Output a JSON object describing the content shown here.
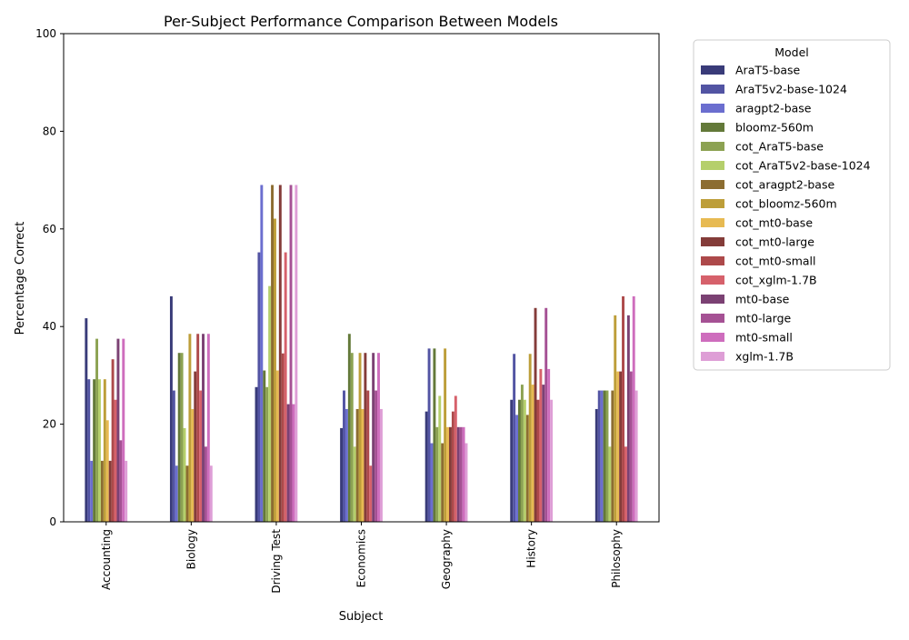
{
  "chart_data": {
    "type": "bar",
    "title": "Per-Subject Performance Comparison Between Models",
    "xlabel": "Subject",
    "ylabel": "Percentage Correct",
    "ylim": [
      0,
      100
    ],
    "yticks": [
      0,
      20,
      40,
      60,
      80,
      100
    ],
    "grid": false,
    "legend": {
      "title": "Model",
      "placement": "outside-right"
    },
    "categories": [
      "Accounting",
      "Biology",
      "Driving Test",
      "Economics",
      "Geography",
      "History",
      "Philosophy"
    ],
    "series": [
      {
        "name": "AraT5-base",
        "color": "#393b79",
        "values": [
          41.7,
          46.2,
          27.6,
          19.2,
          22.6,
          25.0,
          23.1
        ]
      },
      {
        "name": "AraT5v2-base-1024",
        "color": "#5254a3",
        "values": [
          29.2,
          26.9,
          55.2,
          26.9,
          35.5,
          34.4,
          26.9
        ]
      },
      {
        "name": "aragpt2-base",
        "color": "#6b6ecf",
        "values": [
          12.5,
          11.5,
          69.0,
          23.1,
          16.1,
          21.9,
          26.9
        ]
      },
      {
        "name": "bloomz-560m",
        "color": "#637939",
        "values": [
          29.2,
          34.6,
          31.0,
          38.5,
          35.5,
          25.0,
          26.9
        ]
      },
      {
        "name": "cot_AraT5-base",
        "color": "#8ca252",
        "values": [
          37.5,
          34.6,
          27.6,
          34.6,
          19.4,
          28.1,
          26.9
        ]
      },
      {
        "name": "cot_AraT5v2-base-1024",
        "color": "#b5cf6b",
        "values": [
          29.2,
          19.2,
          48.3,
          15.4,
          25.8,
          25.0,
          15.4
        ]
      },
      {
        "name": "cot_aragpt2-base",
        "color": "#8c6d31",
        "values": [
          12.5,
          11.5,
          69.0,
          23.1,
          16.1,
          21.9,
          26.9
        ]
      },
      {
        "name": "cot_bloomz-560m",
        "color": "#bd9e39",
        "values": [
          29.2,
          38.5,
          62.1,
          34.6,
          35.5,
          34.4,
          42.3
        ]
      },
      {
        "name": "cot_mt0-base",
        "color": "#e7ba52",
        "values": [
          20.8,
          23.1,
          31.0,
          23.1,
          19.4,
          28.1,
          30.8
        ]
      },
      {
        "name": "cot_mt0-large",
        "color": "#843c39",
        "values": [
          12.5,
          30.8,
          69.0,
          34.6,
          19.4,
          43.8,
          30.8
        ]
      },
      {
        "name": "cot_mt0-small",
        "color": "#ad494a",
        "values": [
          33.3,
          38.5,
          34.5,
          26.9,
          22.6,
          25.0,
          46.2
        ]
      },
      {
        "name": "cot_xglm-1.7B",
        "color": "#d6616b",
        "values": [
          25.0,
          26.9,
          55.2,
          11.5,
          25.8,
          31.3,
          15.4
        ]
      },
      {
        "name": "mt0-base",
        "color": "#7b4173",
        "values": [
          37.5,
          38.5,
          24.1,
          34.6,
          19.4,
          28.1,
          42.3
        ]
      },
      {
        "name": "mt0-large",
        "color": "#a55194",
        "values": [
          16.7,
          15.4,
          69.0,
          26.9,
          19.4,
          43.8,
          30.8
        ]
      },
      {
        "name": "mt0-small",
        "color": "#ce6dbd",
        "values": [
          37.5,
          38.5,
          24.1,
          34.6,
          19.4,
          31.3,
          46.2
        ]
      },
      {
        "name": "xglm-1.7B",
        "color": "#de9ed6",
        "values": [
          12.5,
          11.5,
          69.0,
          23.1,
          16.1,
          25.0,
          26.9
        ]
      }
    ]
  }
}
